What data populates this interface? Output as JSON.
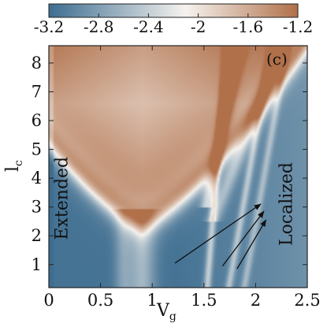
{
  "chart_data": {
    "type": "heatmap",
    "panel_label": "(c)",
    "xlabel": {
      "main": "V",
      "sub": "g"
    },
    "ylabel": {
      "main": "l",
      "sub": "c"
    },
    "xlim": [
      0,
      2.5
    ],
    "ylim": [
      0.2,
      8.6
    ],
    "x_ticks": [
      0,
      0.5,
      1,
      1.5,
      2,
      2.5
    ],
    "x_tick_labels": [
      "0",
      "0.5",
      "1",
      "1.5",
      "2",
      "2.5"
    ],
    "y_ticks": [
      1,
      2,
      3,
      4,
      5,
      6,
      7,
      8
    ],
    "y_tick_labels": [
      "1",
      "2",
      "3",
      "4",
      "5",
      "6",
      "7",
      "8"
    ],
    "colorbar": {
      "position": "top",
      "range": [
        -3.2,
        -1.2
      ],
      "ticks": [
        -3.2,
        -2.8,
        -2.4,
        -2.0,
        -1.6,
        -1.2
      ],
      "tick_labels": [
        "-3.2",
        "-2.8",
        "-2.4",
        "-2",
        "-1.6",
        "-1.2"
      ],
      "colors": {
        "low": "#3d6d90",
        "mid": "#f6f3ef",
        "high": "#b0704a"
      }
    },
    "annotations": [
      {
        "text": "Extended",
        "orientation": "vertical",
        "x": 0.18,
        "y": 3.3
      },
      {
        "text": "Localized",
        "orientation": "vertical",
        "x": 2.35,
        "y": 3.1
      }
    ],
    "arrows": [
      {
        "from": [
          1.22,
          1.05
        ],
        "to": [
          2.05,
          3.1
        ]
      },
      {
        "from": [
          1.68,
          0.95
        ],
        "to": [
          2.08,
          2.85
        ]
      },
      {
        "from": [
          1.82,
          0.85
        ],
        "to": [
          2.1,
          2.55
        ]
      }
    ],
    "features": {
      "extended_region_center_x": 0.9,
      "extended_region_min_lc": 2.6,
      "localized_bands_x": [
        1.55,
        1.78,
        1.93
      ]
    }
  }
}
